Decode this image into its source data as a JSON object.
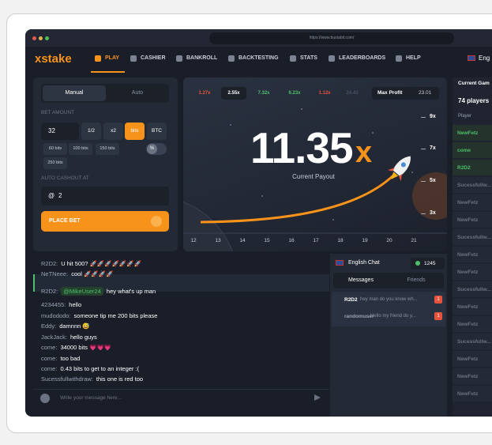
{
  "browser": {
    "url": "https://www.bustabit.com/"
  },
  "nav": {
    "logo": "xstake",
    "items": [
      "PLAY",
      "CASHIER",
      "BANKROLL",
      "BACKTESTING",
      "STATS",
      "LEADERBOARDS",
      "HELP"
    ],
    "language": "Eng"
  },
  "bet_panel": {
    "tabs": [
      "Manual",
      "Auto"
    ],
    "bet_amount_label": "BET AMOUNT",
    "bet_amount": 32,
    "buttons": [
      "1/2",
      "x2",
      "bits",
      "BTC"
    ],
    "quick": [
      "60 bits",
      "100 bits",
      "150 bits",
      "250 bits"
    ],
    "toggle": "%",
    "auto_cashout_label": "AUTO CASHOUT AT",
    "auto_cashout_prefix": "@",
    "auto_cashout": 2,
    "place_bet": "PLACE BET"
  },
  "game": {
    "history": [
      {
        "value": "1.27x",
        "color": "#e5533d"
      },
      {
        "value": "2.55x",
        "color": "#ffffff"
      },
      {
        "value": "7.32x",
        "color": "#4cc06a"
      },
      {
        "value": "6.23x",
        "color": "#4cc06a"
      },
      {
        "value": "1.12x",
        "color": "#e5533d"
      },
      {
        "value": "24.43",
        "color": "#4a5060"
      }
    ],
    "max_profit_label": "Max Profit",
    "max_profit": 23.01,
    "payout": "11.35",
    "payout_suffix": "x",
    "payout_label": "Current Payout",
    "y_labels": [
      "9x",
      "7x",
      "5x",
      "3x"
    ],
    "x_labels": [
      12,
      13,
      14,
      15,
      16,
      17,
      18,
      19,
      20,
      21
    ]
  },
  "chat": {
    "messages": [
      {
        "user": "R2D2:",
        "text": "U hit 500? 🚀🚀🚀🚀🚀🚀🚀"
      },
      {
        "user": "NeTNeee:",
        "text": "cool 🚀🚀🚀🚀"
      },
      {
        "user": "R2D2:",
        "mention": "@MikeUser24",
        "text": "hey what's up man"
      },
      {
        "user": "4234455:",
        "text": "hello"
      },
      {
        "user": "mudododo:",
        "text": "someone tip me 200 bits please"
      },
      {
        "user": "Eddy:",
        "text": "damnnn 😅"
      },
      {
        "user": "JackJack:",
        "text": "hello guys"
      },
      {
        "user": "come:",
        "text": "34000 bits 💗💗💗"
      },
      {
        "user": "come:",
        "text": "too bad"
      },
      {
        "user": "come:",
        "text": "0.43 bits to get to an integer :("
      },
      {
        "user": "Sucessfullwithdraw:",
        "text": "this one is red too"
      }
    ],
    "input_placeholder": "Write your message here...",
    "room": "English Chat",
    "balance": 1245,
    "tabs": [
      "Messages",
      "Friends"
    ],
    "conversations": [
      {
        "user": "R2D2",
        "text": "hey man do you know wh...",
        "unread": 1
      },
      {
        "user": "randomuser",
        "text": "Hello my friend do y...",
        "unread": 1
      }
    ]
  },
  "players": {
    "title": "Current Gam",
    "count": "74 players",
    "column": "Player",
    "rows": [
      {
        "name": "NewFetz",
        "color": "#4cc06a"
      },
      {
        "name": "come",
        "color": "#4cc06a"
      },
      {
        "name": "R2D2",
        "color": "#4cc06a"
      },
      {
        "name": "Sucessfullw...",
        "color": "#6b7282"
      },
      {
        "name": "NewFetz",
        "color": "#6b7282"
      },
      {
        "name": "NewFetz",
        "color": "#6b7282"
      },
      {
        "name": "Sucessfullw...",
        "color": "#6b7282"
      },
      {
        "name": "NewFetz",
        "color": "#6b7282"
      },
      {
        "name": "NewFetz",
        "color": "#6b7282"
      },
      {
        "name": "Sucessfullw...",
        "color": "#6b7282"
      },
      {
        "name": "NewFetz",
        "color": "#6b7282"
      },
      {
        "name": "NewFetz",
        "color": "#6b7282"
      },
      {
        "name": "Sucessfullw...",
        "color": "#6b7282"
      },
      {
        "name": "NewFetz",
        "color": "#6b7282"
      },
      {
        "name": "NewFetz",
        "color": "#6b7282"
      },
      {
        "name": "NewFetz",
        "color": "#6b7282"
      }
    ]
  }
}
